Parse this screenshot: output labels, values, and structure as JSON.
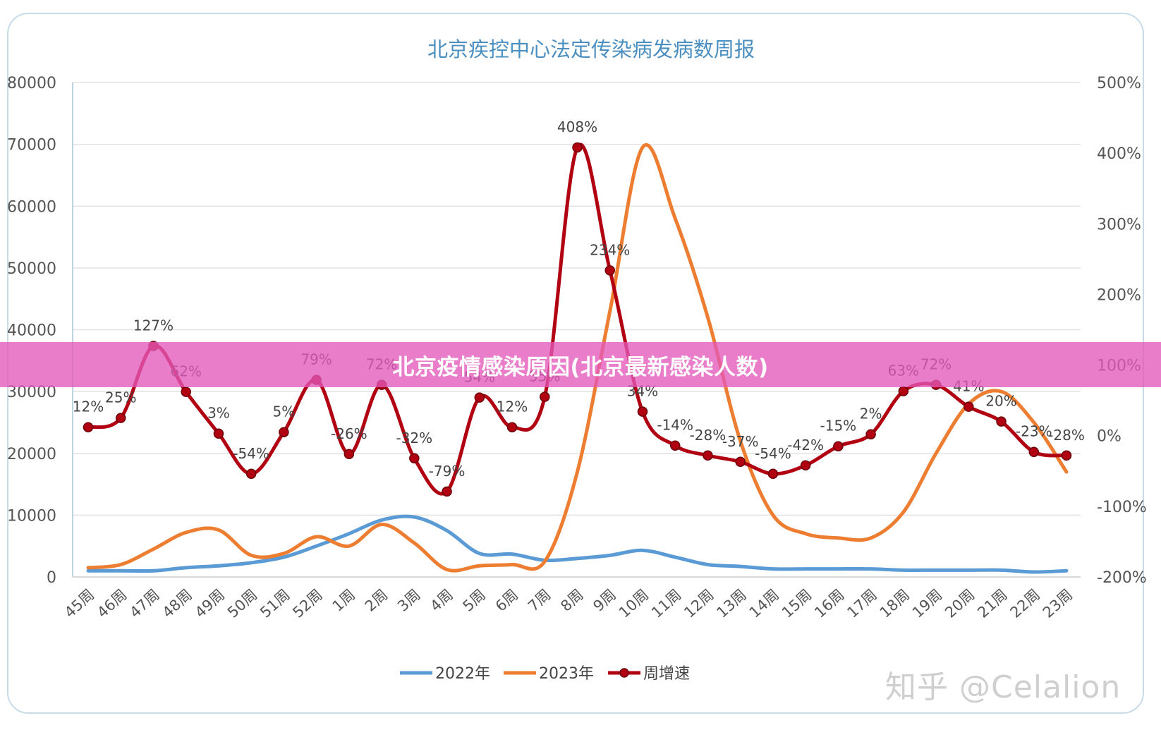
{
  "banner": {
    "text": "北京疫情感染原因(北京最新感染人数)"
  },
  "watermark": {
    "text": "知乎 @Celalion"
  },
  "colors": {
    "s2022": "#5b9bd5",
    "s2023": "#ed7d31",
    "growth": "#b00012",
    "grid": "#e3e3e3",
    "title": "#4a8fbf",
    "axis": "#555555"
  },
  "chart_data": {
    "type": "line",
    "title": "北京疾控中心法定传染病发病数周报",
    "categories": [
      "45周",
      "46周",
      "47周",
      "48周",
      "49周",
      "50周",
      "51周",
      "52周",
      "1周",
      "2周",
      "3周",
      "4周",
      "5周",
      "6周",
      "7周",
      "8周",
      "9周",
      "10周",
      "11周",
      "12周",
      "13周",
      "14周",
      "15周",
      "16周",
      "17周",
      "18周",
      "19周",
      "20周",
      "21周",
      "22周",
      "23周"
    ],
    "y_left": {
      "min": 0,
      "max": 80000,
      "ticks": [
        "0",
        "10000",
        "20000",
        "30000",
        "40000",
        "50000",
        "60000",
        "70000",
        "80000"
      ]
    },
    "y_right": {
      "min": -200,
      "max": 500,
      "ticks": [
        "-200%",
        "-100%",
        "0%",
        "100%",
        "200%",
        "300%",
        "400%",
        "500%"
      ]
    },
    "series": [
      {
        "name": "2022年",
        "axis": "left",
        "values": [
          1000,
          1000,
          1000,
          1500,
          1800,
          2300,
          3200,
          5000,
          7000,
          9200,
          9700,
          7500,
          3800,
          3700,
          2700,
          3000,
          3500,
          4300,
          3200,
          2000,
          1700,
          1300,
          1300,
          1300,
          1300,
          1100,
          1100,
          1100,
          1100,
          800,
          1000
        ]
      },
      {
        "name": "2023年",
        "axis": "left",
        "values": [
          1500,
          2000,
          4500,
          7200,
          7600,
          3500,
          3800,
          6500,
          5000,
          8500,
          5500,
          1200,
          1800,
          2000,
          2500,
          17000,
          43000,
          69500,
          58000,
          42000,
          22000,
          10000,
          7000,
          6300,
          6300,
          10500,
          20000,
          28000,
          30000,
          25000,
          17000
        ]
      },
      {
        "name": "周增速",
        "axis": "right",
        "values": [
          12,
          25,
          127,
          62,
          3,
          -54,
          5,
          79,
          -26,
          72,
          -32,
          -79,
          54,
          12,
          55,
          408,
          234,
          34,
          -14,
          -28,
          -37,
          -54,
          -42,
          -15,
          2,
          63,
          72,
          41,
          20,
          -23,
          -28
        ],
        "labels": [
          "12%",
          "25%",
          "127%",
          "62%",
          "3%",
          "-54%",
          "5%",
          "79%",
          "-26%",
          "72%",
          "-32%",
          "-79%",
          "54%",
          "12%",
          "55%",
          "408%",
          "234%",
          "34%",
          "-14%",
          "-28%",
          "-37%",
          "-54%",
          "-42%",
          "-15%",
          "2%",
          "63%",
          "72%",
          "41%",
          "20%",
          "-23%",
          "-28%"
        ]
      }
    ],
    "legend": {
      "position": "bottom-center",
      "entries": [
        "2022年",
        "2023年",
        "周增速"
      ]
    },
    "grid": true
  }
}
